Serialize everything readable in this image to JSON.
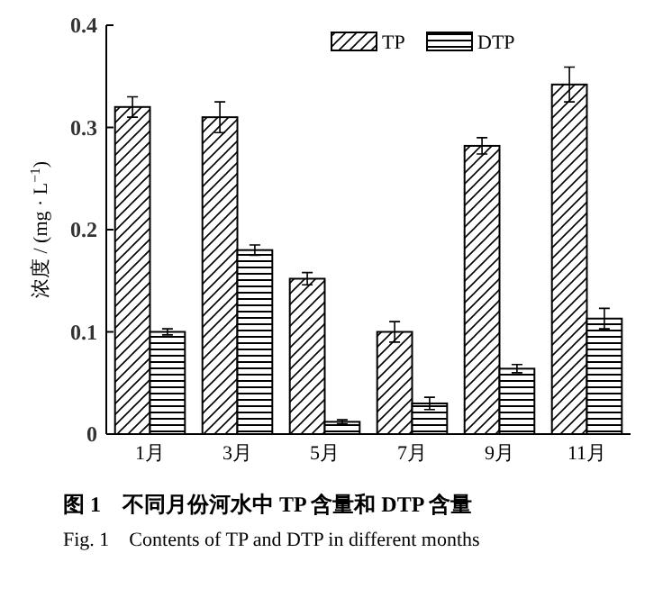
{
  "chart_data": {
    "type": "bar",
    "categories": [
      "1月",
      "3月",
      "5月",
      "7月",
      "9月",
      "11月"
    ],
    "series": [
      {
        "name": "TP",
        "color": "#000000",
        "values": [
          0.32,
          0.31,
          0.152,
          0.1,
          0.282,
          0.342
        ],
        "errors": [
          0.01,
          0.015,
          0.006,
          0.01,
          0.008,
          0.017
        ]
      },
      {
        "name": "DTP",
        "color": "#000000",
        "values": [
          0.1,
          0.18,
          0.012,
          0.03,
          0.064,
          0.113
        ],
        "errors": [
          0.003,
          0.005,
          0.002,
          0.006,
          0.004,
          0.01
        ]
      }
    ],
    "ylabel": "浓度 / (mg · L$^{−1}$)",
    "ylim": [
      0,
      0.4
    ],
    "yticks": [
      0,
      0.1,
      0.2,
      0.3,
      0.4
    ],
    "grid": false,
    "legend": "top",
    "annotations": [
      "图 1　不同月份河水中 TP 含量和 DTP 含量",
      "Fig. 1　Contents of TP and DTP in different months"
    ]
  }
}
